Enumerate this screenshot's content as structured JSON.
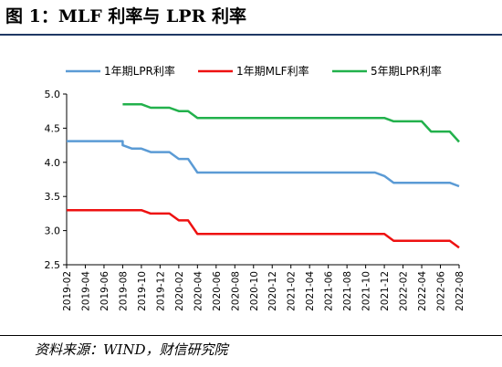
{
  "header": {
    "title": "图 1：MLF 利率与 LPR 利率",
    "source": "资料来源：WIND，财信研究院"
  },
  "chart_data": {
    "type": "line",
    "title": "MLF 利率与 LPR 利率",
    "xlabel": "",
    "ylabel": "",
    "ylim": [
      2.5,
      5.0
    ],
    "yticks": [
      "2.5",
      "3.0",
      "3.5",
      "4.0",
      "4.5",
      "5.0"
    ],
    "xlim": [
      "2019-02",
      "2022-08"
    ],
    "xticks": [
      "2019-02",
      "2019-04",
      "2019-06",
      "2019-08",
      "2019-10",
      "2019-12",
      "2020-02",
      "2020-04",
      "2020-06",
      "2020-08",
      "2020-10",
      "2020-12",
      "2021-02",
      "2021-04",
      "2021-06",
      "2021-08",
      "2021-10",
      "2021-12",
      "2022-02",
      "2022-04",
      "2022-06",
      "2022-08"
    ],
    "grid": false,
    "legend": "top",
    "series": [
      {
        "name": "1年期LPR利率",
        "color": "#5b9bd5",
        "points": [
          [
            "2019-02",
            4.31
          ],
          [
            "2019-08",
            4.31
          ],
          [
            "2019-08",
            4.25
          ],
          [
            "2019-09",
            4.2
          ],
          [
            "2019-10",
            4.2
          ],
          [
            "2019-11",
            4.15
          ],
          [
            "2020-01",
            4.15
          ],
          [
            "2020-02",
            4.05
          ],
          [
            "2020-03",
            4.05
          ],
          [
            "2020-04",
            3.85
          ],
          [
            "2021-11",
            3.85
          ],
          [
            "2021-12",
            3.8
          ],
          [
            "2022-01",
            3.7
          ],
          [
            "2022-07",
            3.7
          ],
          [
            "2022-08",
            3.65
          ]
        ]
      },
      {
        "name": "1年期MLF利率",
        "color": "#ee1111",
        "points": [
          [
            "2019-02",
            3.3
          ],
          [
            "2019-10",
            3.3
          ],
          [
            "2019-11",
            3.25
          ],
          [
            "2020-01",
            3.25
          ],
          [
            "2020-02",
            3.15
          ],
          [
            "2020-03",
            3.15
          ],
          [
            "2020-04",
            2.95
          ],
          [
            "2021-12",
            2.95
          ],
          [
            "2022-01",
            2.85
          ],
          [
            "2022-07",
            2.85
          ],
          [
            "2022-08",
            2.75
          ]
        ]
      },
      {
        "name": "5年期LPR利率",
        "color": "#22b14c",
        "points": [
          [
            "2019-08",
            4.85
          ],
          [
            "2019-10",
            4.85
          ],
          [
            "2019-11",
            4.8
          ],
          [
            "2020-01",
            4.8
          ],
          [
            "2020-02",
            4.75
          ],
          [
            "2020-03",
            4.75
          ],
          [
            "2020-04",
            4.65
          ],
          [
            "2021-12",
            4.65
          ],
          [
            "2022-01",
            4.6
          ],
          [
            "2022-04",
            4.6
          ],
          [
            "2022-05",
            4.45
          ],
          [
            "2022-07",
            4.45
          ],
          [
            "2022-08",
            4.3
          ]
        ]
      }
    ]
  }
}
